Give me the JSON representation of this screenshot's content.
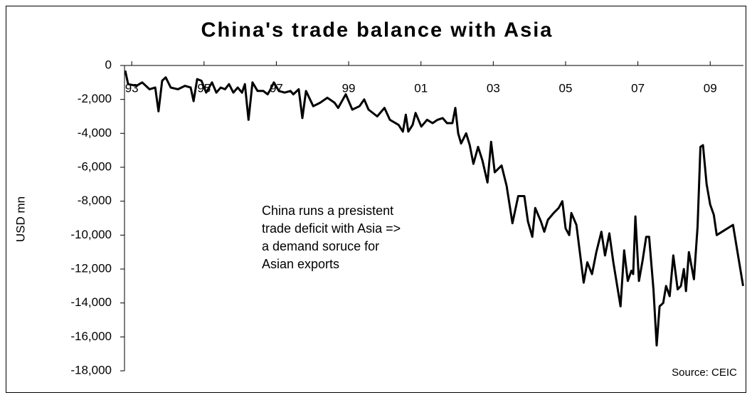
{
  "chart_data": {
    "type": "line",
    "title": "China's trade balance with Asia",
    "y_label": "USD mn",
    "annotation": [
      "China runs a presistent",
      "trade deficit with Asia =>",
      "a demand soruce for",
      "Asian exports"
    ],
    "source": "Source: CEIC",
    "color": "#000000",
    "xlim": [
      1992.8,
      2009.92
    ],
    "xticks": [
      {
        "value": 1993,
        "label": "93"
      },
      {
        "value": 1995,
        "label": "95"
      },
      {
        "value": 1997,
        "label": "97"
      },
      {
        "value": 1999,
        "label": "99"
      },
      {
        "value": 2001,
        "label": "01"
      },
      {
        "value": 2003,
        "label": "03"
      },
      {
        "value": 2005,
        "label": "05"
      },
      {
        "value": 2007,
        "label": "07"
      },
      {
        "value": 2009,
        "label": "09"
      }
    ],
    "ylim": [
      -18000,
      0
    ],
    "yticks": [
      0,
      {
        "value": -2000,
        "label": "-2,000"
      },
      {
        "value": -4000,
        "label": "-4,000"
      },
      {
        "value": -6000,
        "label": "-6,000"
      },
      {
        "value": -8000,
        "label": "-8,000"
      },
      {
        "value": -10000,
        "label": "-10,000"
      },
      {
        "value": -12000,
        "label": "-12,000"
      },
      {
        "value": -14000,
        "label": "-14,000"
      },
      {
        "value": -16000,
        "label": "-16,000"
      },
      {
        "value": -18000,
        "label": "-18,000"
      }
    ],
    "grid": false,
    "x": [
      1992.82,
      1992.9,
      1993.13,
      1993.29,
      1993.49,
      1993.65,
      1993.74,
      1993.84,
      1993.94,
      1994.08,
      1994.28,
      1994.47,
      1994.63,
      1994.71,
      1994.81,
      1994.93,
      1995.06,
      1995.22,
      1995.34,
      1995.46,
      1995.58,
      1995.69,
      1995.81,
      1995.93,
      1996.05,
      1996.13,
      1996.23,
      1996.34,
      1996.48,
      1996.64,
      1996.76,
      1996.84,
      1996.93,
      1997.07,
      1997.23,
      1997.39,
      1997.47,
      1997.62,
      1997.72,
      1997.82,
      1998.02,
      1998.21,
      1998.41,
      1998.61,
      1998.71,
      1998.92,
      1999.1,
      1999.3,
      1999.43,
      1999.55,
      1999.79,
      1999.99,
      2000.14,
      2000.38,
      2000.5,
      2000.58,
      2000.65,
      2000.77,
      2000.85,
      2001.01,
      2001.17,
      2001.32,
      2001.46,
      2001.6,
      2001.72,
      2001.87,
      2001.95,
      2002.03,
      2002.11,
      2002.25,
      2002.35,
      2002.45,
      2002.58,
      2002.7,
      2002.84,
      2002.94,
      2003.04,
      2003.23,
      2003.37,
      2003.53,
      2003.69,
      2003.86,
      2003.96,
      2004.08,
      2004.16,
      2004.32,
      2004.41,
      2004.51,
      2004.67,
      2004.81,
      2004.91,
      2005.0,
      2005.1,
      2005.16,
      2005.3,
      2005.5,
      2005.6,
      2005.73,
      2005.85,
      2005.99,
      2006.09,
      2006.21,
      2006.32,
      2006.52,
      2006.62,
      2006.72,
      2006.82,
      2006.87,
      2006.93,
      2007.03,
      2007.13,
      2007.23,
      2007.31,
      2007.43,
      2007.52,
      2007.6,
      2007.7,
      2007.78,
      2007.88,
      2007.98,
      2008.1,
      2008.19,
      2008.27,
      2008.33,
      2008.41,
      2008.55,
      2008.65,
      2008.73,
      2008.8,
      2008.9,
      2009.0,
      2009.1,
      2009.18,
      2009.63,
      2009.91
    ],
    "values": [
      -300,
      -1100,
      -1200,
      -1000,
      -1400,
      -1300,
      -2700,
      -900,
      -700,
      -1300,
      -1400,
      -1200,
      -1300,
      -2100,
      -800,
      -900,
      -1600,
      -1000,
      -1600,
      -1300,
      -1400,
      -1100,
      -1600,
      -1300,
      -1600,
      -1100,
      -3200,
      -1000,
      -1500,
      -1500,
      -1700,
      -1400,
      -1000,
      -1500,
      -1600,
      -1500,
      -1700,
      -1400,
      -3100,
      -1500,
      -2400,
      -2200,
      -1900,
      -2200,
      -2500,
      -1700,
      -2600,
      -2400,
      -2000,
      -2600,
      -3000,
      -2500,
      -3200,
      -3500,
      -3900,
      -2900,
      -3900,
      -3500,
      -2800,
      -3600,
      -3200,
      -3400,
      -3200,
      -3100,
      -3400,
      -3400,
      -2500,
      -4000,
      -4600,
      -4000,
      -4700,
      -5800,
      -4800,
      -5600,
      -6900,
      -4500,
      -6300,
      -5900,
      -7100,
      -9300,
      -7700,
      -7700,
      -9200,
      -10100,
      -8400,
      -9200,
      -9800,
      -9100,
      -8700,
      -8400,
      -8000,
      -9600,
      -10000,
      -8700,
      -9400,
      -12800,
      -11600,
      -12300,
      -11000,
      -9800,
      -11200,
      -9900,
      -11600,
      -14200,
      -10900,
      -12700,
      -12100,
      -12300,
      -8900,
      -12700,
      -11500,
      -10100,
      -10100,
      -13200,
      -16500,
      -14200,
      -14000,
      -13000,
      -13600,
      -11200,
      -13200,
      -13000,
      -12000,
      -13300,
      -11000,
      -12600,
      -9500,
      -4800,
      -4700,
      -7000,
      -8200,
      -8800,
      -10000,
      -9400,
      -13000
    ]
  }
}
